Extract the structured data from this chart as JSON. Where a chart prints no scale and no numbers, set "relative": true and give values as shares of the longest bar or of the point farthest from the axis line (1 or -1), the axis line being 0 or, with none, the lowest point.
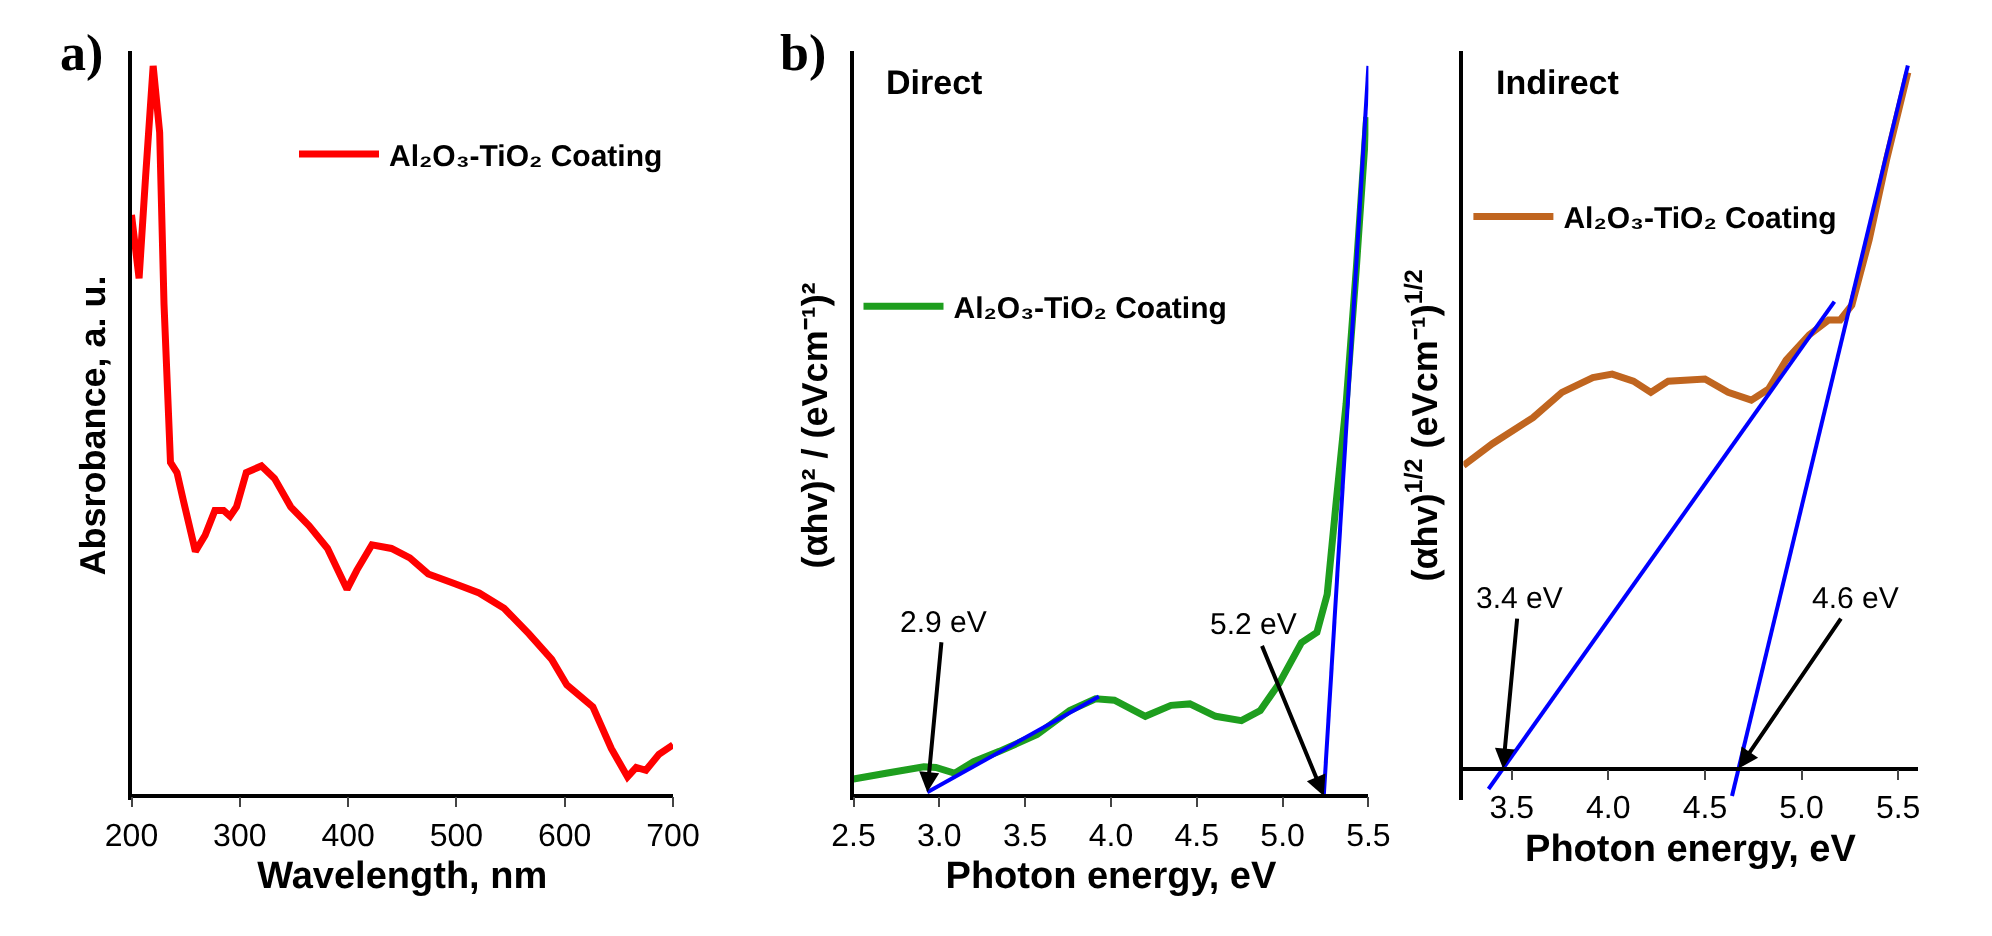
{
  "chart_data": [
    {
      "type": "line",
      "title": "a)",
      "xlabel": "Wavelength, nm",
      "ylabel": "Absrobance, a. u.",
      "relative": true,
      "tick_labels": "x",
      "legend": "top right",
      "xlim": [
        200,
        700
      ],
      "xticks": [
        200,
        300,
        400,
        500,
        600,
        700
      ],
      "series": [
        {
          "name": "Al₂O₃-TiO₂ Coating",
          "color": "#ff0000",
          "x": [
            200,
            207,
            213,
            220,
            226,
            230,
            236,
            242,
            248,
            259,
            268,
            277,
            285,
            291,
            297,
            306,
            320,
            332,
            347,
            364,
            381,
            399,
            408,
            422,
            440,
            457,
            474,
            498,
            521,
            544,
            567,
            588,
            602,
            626,
            643,
            658,
            666,
            675,
            687,
            700
          ],
          "values": [
            0.796,
            0.709,
            0.848,
            1.0,
            0.909,
            0.674,
            0.457,
            0.443,
            0.404,
            0.335,
            0.357,
            0.391,
            0.391,
            0.383,
            0.396,
            0.443,
            0.452,
            0.435,
            0.396,
            0.37,
            0.339,
            0.283,
            0.309,
            0.344,
            0.339,
            0.326,
            0.304,
            0.291,
            0.278,
            0.257,
            0.222,
            0.187,
            0.152,
            0.122,
            0.065,
            0.026,
            0.039,
            0.035,
            0.057,
            0.07
          ]
        }
      ]
    },
    {
      "type": "line",
      "title": "b)",
      "subtitle": "Direct",
      "xlabel": "Photon energy, eV",
      "ylabel": "(αhv)² / (eVcm⁻¹)²",
      "relative": true,
      "tick_labels": "x",
      "legend": "left",
      "xlim": [
        2.5,
        5.5
      ],
      "xticks": [
        {
          "value": 2.5,
          "label": "2.5"
        },
        {
          "value": 3.0,
          "label": "3.0"
        },
        {
          "value": 3.5,
          "label": "3.5"
        },
        {
          "value": 4.0,
          "label": "4.0"
        },
        {
          "value": 4.5,
          "label": "4.5"
        },
        {
          "value": 5.0,
          "label": "5.0"
        },
        {
          "value": 5.5,
          "label": "5.5"
        }
      ],
      "series": [
        {
          "name": "Al₂O₃-TiO₂ Coating",
          "color": "#1e9e1e",
          "x": [
            2.5,
            2.69,
            2.91,
            2.98,
            3.09,
            3.2,
            3.35,
            3.57,
            3.76,
            3.91,
            4.02,
            4.2,
            4.35,
            4.46,
            4.61,
            4.76,
            4.87,
            4.98,
            5.11,
            5.2,
            5.26,
            5.31,
            5.37,
            5.43,
            5.49
          ],
          "values": [
            0.023,
            0.031,
            0.04,
            0.039,
            0.031,
            0.047,
            0.061,
            0.084,
            0.117,
            0.133,
            0.131,
            0.109,
            0.124,
            0.126,
            0.109,
            0.103,
            0.117,
            0.154,
            0.21,
            0.224,
            0.276,
            0.397,
            0.537,
            0.724,
            0.93
          ]
        },
        {
          "color": "#0000ff",
          "x": [
            2.93,
            3.93
          ],
          "values": [
            0.005,
            0.136
          ]
        },
        {
          "color": "#0000ff",
          "x": [
            5.24,
            5.5
          ],
          "values": [
            0.0,
            1.0
          ]
        }
      ],
      "annotations": [
        {
          "text": "2.9 eV",
          "x": 2.93,
          "y": 0.005
        },
        {
          "text": "5.2 eV",
          "x": 5.24,
          "y": 0.0
        }
      ]
    },
    {
      "type": "line",
      "subtitle": "Indirect",
      "xlabel": "Photon energy, eV",
      "ylabel": "(αhv)$^{1/2}$ (eVcm⁻¹)$^{1/2}$",
      "relative": true,
      "tick_labels": "x",
      "legend": "top left",
      "xlim": [
        3.25,
        5.6
      ],
      "xticks": [
        {
          "value": 3.5,
          "label": "3.5"
        },
        {
          "value": 4.0,
          "label": "4.0"
        },
        {
          "value": 4.5,
          "label": "4.5"
        },
        {
          "value": 5.0,
          "label": "5.0"
        },
        {
          "value": 5.5,
          "label": "5.5"
        }
      ],
      "series": [
        {
          "name": "Al₂O₃-TiO₂ Coating",
          "color": "#c0651f",
          "x": [
            3.25,
            3.4,
            3.61,
            3.76,
            3.92,
            4.02,
            4.13,
            4.22,
            4.31,
            4.5,
            4.62,
            4.74,
            4.83,
            4.92,
            5.04,
            5.14,
            5.2,
            5.26,
            5.35,
            5.44,
            5.55
          ],
          "values": [
            0.431,
            0.462,
            0.499,
            0.535,
            0.556,
            0.561,
            0.551,
            0.535,
            0.551,
            0.554,
            0.535,
            0.524,
            0.54,
            0.581,
            0.617,
            0.638,
            0.638,
            0.659,
            0.752,
            0.866,
            0.99
          ]
        },
        {
          "color": "#0000ff",
          "x": [
            3.38,
            5.17
          ],
          "values": [
            -0.029,
            0.664
          ]
        },
        {
          "color": "#0000ff",
          "x": [
            4.64,
            5.55
          ],
          "values": [
            -0.039,
            1.0
          ]
        }
      ],
      "annotations": [
        {
          "text": "3.4 eV",
          "x": 3.455,
          "y": 0.0
        },
        {
          "text": "4.6 eV",
          "x": 4.674,
          "y": 0.0
        }
      ]
    }
  ]
}
